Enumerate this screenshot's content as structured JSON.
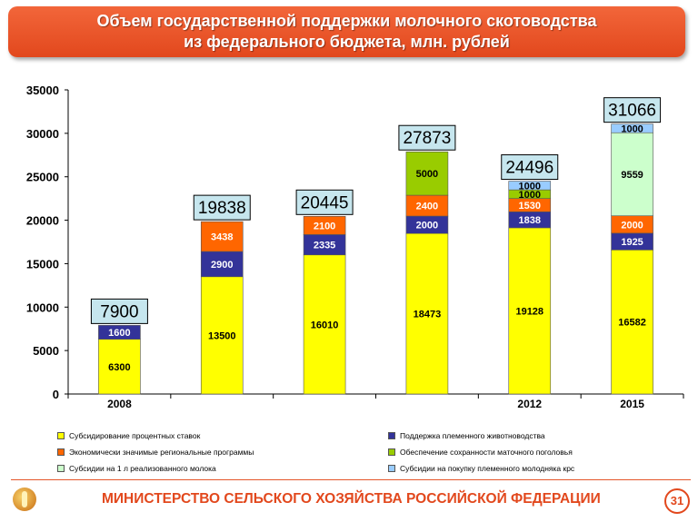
{
  "title": {
    "line1": "Объем государственной поддержки молочного скотоводства",
    "line2": "из федерального бюджета, млн. рублей"
  },
  "footer": {
    "ministry": "МИНИСТЕРСТВО СЕЛЬСКОГО ХОЗЯЙСТВА РОССИЙСКОЙ ФЕДЕРАЦИИ",
    "page_number": "31"
  },
  "chart_data": {
    "type": "bar",
    "stacked": true,
    "categories": [
      "2008",
      "",
      "",
      "",
      "2012",
      "2015"
    ],
    "ylim": [
      0,
      35000
    ],
    "yticks": [
      0,
      5000,
      10000,
      15000,
      20000,
      25000,
      30000,
      35000
    ],
    "totals": [
      "7900",
      "19838",
      "20445",
      "27873",
      "24496",
      "31066"
    ],
    "series": [
      {
        "name": "Субсидирование процентных ставок",
        "color": "#ffff00",
        "values": [
          6300,
          13500,
          16010,
          18473,
          19128,
          16582
        ],
        "labels": [
          "6300",
          "13500",
          "16010",
          "18473",
          "19128",
          "16582"
        ]
      },
      {
        "name": "Поддержка племенного животноводства",
        "color": "#333399",
        "values": [
          1600,
          2900,
          2335,
          2000,
          1838,
          1925
        ],
        "labels": [
          "1600",
          "2900",
          "2335",
          "2000",
          "1838",
          "1925"
        ]
      },
      {
        "name": "Экономически значимые региональные программы",
        "color": "#ff6600",
        "values": [
          0,
          3438,
          2100,
          2400,
          1530,
          2000
        ],
        "labels": [
          "",
          "3438",
          "2100",
          "2400",
          "1530",
          "2000"
        ]
      },
      {
        "name": "Обеспечение сохранности маточного поголовья",
        "color": "#99cc00",
        "values": [
          0,
          0,
          0,
          5000,
          1000,
          0
        ],
        "labels": [
          "",
          "",
          "",
          "5000",
          "1000",
          ""
        ]
      },
      {
        "name": "Субсидии на 1 л реализованного молока",
        "color": "#ccffcc",
        "values": [
          0,
          0,
          0,
          0,
          0,
          9559
        ],
        "labels": [
          "",
          "",
          "",
          "",
          "",
          "9559"
        ]
      },
      {
        "name": "Субсидии на покупку племенного молодняка крс",
        "color": "#99ccff",
        "values": [
          0,
          0,
          0,
          0,
          1000,
          1000
        ],
        "labels": [
          "",
          "",
          "",
          "",
          "1000",
          "1000"
        ]
      }
    ]
  }
}
